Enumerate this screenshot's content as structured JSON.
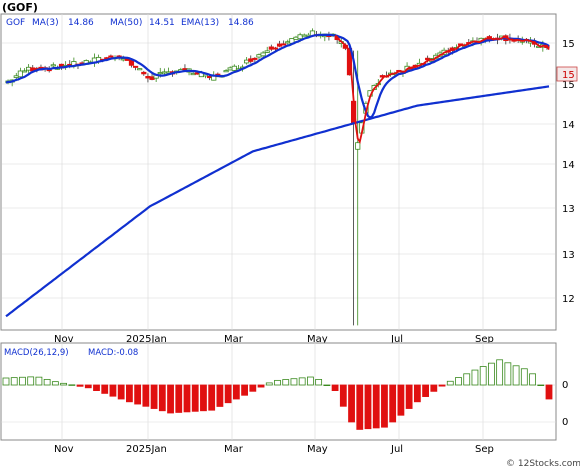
{
  "symbol_header": "(GOF)",
  "watermark": "© 12Stocks.com",
  "colors": {
    "ma3": "#e01010",
    "ma50": "#1030d0",
    "up_candle": "#3a8a1e",
    "down_candle": "#e01010",
    "macd_pos": "#3a8a1e",
    "macd_neg": "#e01010",
    "frame": "#888888",
    "last_price_bg": "#f4e8e8"
  },
  "legend": {
    "symbol": "GOF",
    "ma3_label": "MA(3)",
    "ma3_value": "14.86",
    "ma50_label": "MA(50)",
    "ma50_value": "14.51",
    "ema13_label": "EMA(13)",
    "ema13_value": "14.86"
  },
  "macd_legend": {
    "label": "MACD(26,12,9)",
    "value_label": "MACD:-0.08"
  },
  "last_price_tag": "15",
  "chart_data": [
    {
      "type": "candlestick",
      "title": "(GOF)",
      "x_tick_labels": [
        "Nov",
        "2025Jan",
        "Mar",
        "May",
        "Jul",
        "Sep"
      ],
      "y_tick_labels": [
        "15",
        "15",
        "14",
        "14",
        "13",
        "13",
        "12"
      ],
      "ylim": [
        11.85,
        15.3
      ],
      "series": [
        {
          "name": "MA(3)",
          "type": "line",
          "current": 14.86
        },
        {
          "name": "MA(50)",
          "type": "line",
          "current": 14.51
        },
        {
          "name": "EMA(13)",
          "type": "line",
          "current": 14.86
        }
      ],
      "key_points": [
        {
          "x": "2024-09",
          "ma50": 12.0
        },
        {
          "x": "2025-01",
          "ma50": 13.2
        },
        {
          "x": "2025-03",
          "ma50": 13.8
        },
        {
          "x": "2025-04",
          "low": 11.9,
          "ema13": 14.0
        },
        {
          "x": "2025-07",
          "ma50": 14.3
        },
        {
          "x": "2025-09",
          "close": 14.86,
          "ma50": 14.51
        }
      ]
    },
    {
      "type": "bar",
      "title": "MACD(26,12,9)",
      "x_tick_labels": [
        "Nov",
        "2025Jan",
        "Mar",
        "May",
        "Jul",
        "Sep"
      ],
      "y_tick_labels": [
        "0",
        "0"
      ],
      "current": -0.08
    }
  ]
}
